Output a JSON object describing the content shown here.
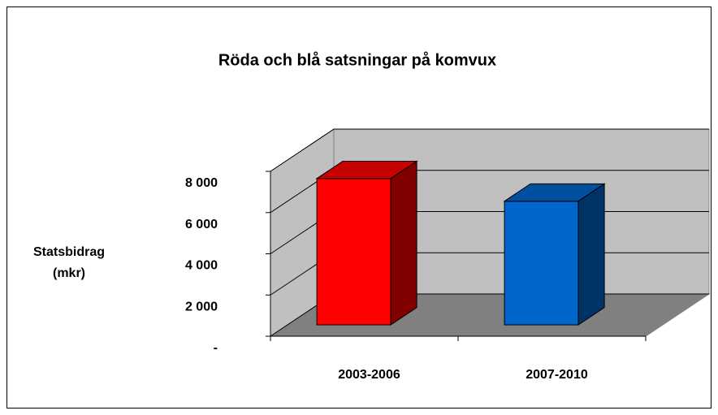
{
  "chart_data": {
    "type": "bar3d",
    "title": "Röda och blå satsningar på komvux",
    "y_label": "Statsbidrag\n(mkr)",
    "categories": [
      "2003-2006",
      "2007-2010"
    ],
    "values": [
      7100,
      6000
    ],
    "colors": [
      "#ff0000",
      "#0066cc"
    ],
    "ylim": [
      0,
      8000
    ],
    "yticks": [
      {
        "value": 0,
        "label": "-"
      },
      {
        "value": 2000,
        "label": "2 000"
      },
      {
        "value": 4000,
        "label": "4 000"
      },
      {
        "value": 6000,
        "label": "6 000"
      },
      {
        "value": 8000,
        "label": "8 000"
      }
    ],
    "grid": true
  }
}
